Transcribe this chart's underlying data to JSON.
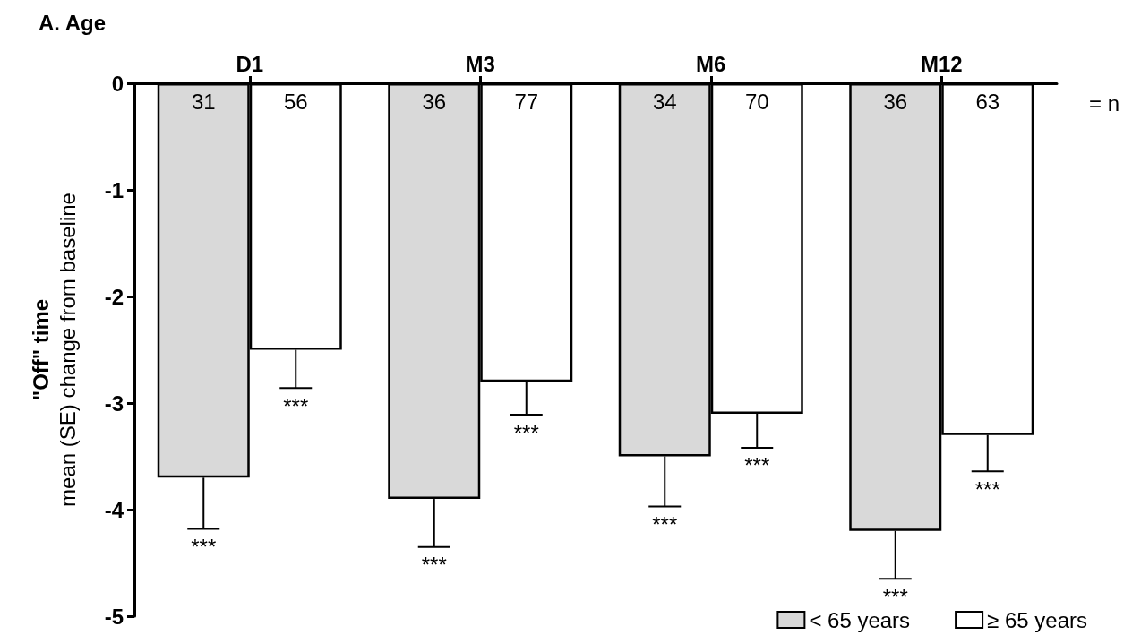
{
  "chart_data": {
    "type": "bar",
    "title": "A. Age",
    "ylabel": "\"Off\" time\nmean (SE) change from baseline",
    "categories": [
      "D1",
      "M3",
      "M6",
      "M12"
    ],
    "series": [
      {
        "name": "< 65 years",
        "color": "#d9d9d9",
        "values": [
          -3.7,
          -3.9,
          -3.5,
          -4.2
        ],
        "errors": [
          [
            -4.18,
            -3.7
          ],
          [
            -4.35,
            -3.9
          ],
          [
            -3.97,
            -3.5
          ],
          [
            -4.65,
            -4.2
          ]
        ]
      },
      {
        "name": "≥ 65 years",
        "color": "#ffffff",
        "values": [
          -2.5,
          -2.8,
          -3.1,
          -3.3
        ],
        "errors": [
          [
            -2.86,
            -2.5
          ],
          [
            -3.11,
            -2.8
          ],
          [
            -3.42,
            -3.1
          ],
          [
            -3.64,
            -3.3
          ]
        ]
      }
    ],
    "ylim": [
      -5,
      0
    ],
    "yticks": [
      -5,
      -4,
      -3,
      -2,
      -1,
      0
    ],
    "legend": "bottom right",
    "annotations": [
      {
        "text": "31",
        "x": "D1",
        "y": 0
      },
      {
        "text": "56",
        "x": "D1",
        "y": 0
      },
      {
        "text": "36",
        "x": "M3",
        "y": 0
      },
      {
        "text": "77",
        "x": "M3",
        "y": 0
      },
      {
        "text": "34",
        "x": "M6",
        "y": 0
      },
      {
        "text": "70",
        "x": "M6",
        "y": 0
      },
      {
        "text": "36",
        "x": "M12",
        "y": 0
      },
      {
        "text": "63",
        "x": "M12",
        "y": 0
      },
      "***",
      "***",
      "***",
      "***",
      "***",
      "***",
      "***",
      "***",
      "= n"
    ]
  }
}
